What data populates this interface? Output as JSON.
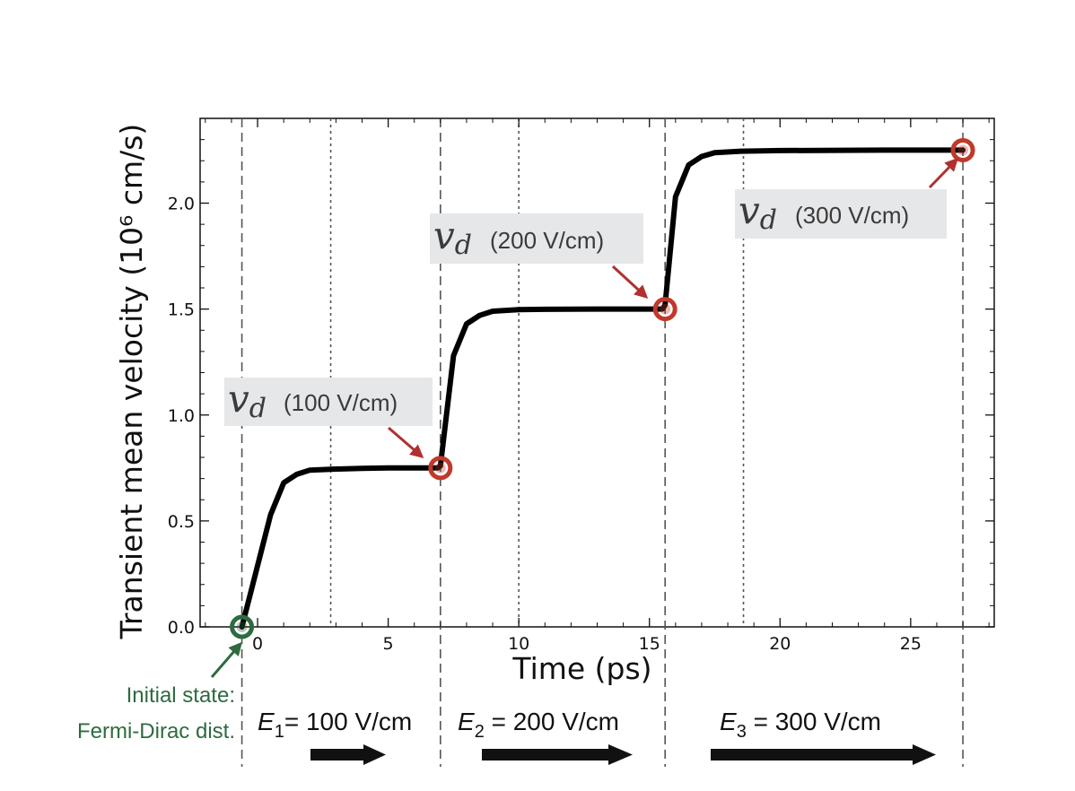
{
  "chart_data": {
    "type": "line",
    "xlabel": "Time (ps)",
    "ylabel": "Transient mean velocity (10⁶ cm/s)",
    "xlim": [
      -2.2,
      28.2
    ],
    "ylim": [
      0,
      2.4
    ],
    "xticks": [
      0,
      5,
      10,
      15,
      20,
      25
    ],
    "yticks": [
      0.0,
      0.5,
      1.0,
      1.5,
      2.0
    ],
    "xtick_labels": [
      "0",
      "5",
      "10",
      "15",
      "20",
      "25"
    ],
    "ytick_labels": [
      "0.0",
      "0.5",
      "1.0",
      "1.5",
      "2.0"
    ],
    "grid": false,
    "series": [
      {
        "x": [
          -0.6,
          0.5,
          1.0,
          1.5,
          2.0,
          3.0,
          4.0,
          5.0,
          6.9,
          7.0,
          7.5,
          8.0,
          8.5,
          9.0,
          10.0,
          11.0,
          13.0,
          15.5,
          15.6,
          16.0,
          16.5,
          17.0,
          17.5,
          18.5,
          20.0,
          24.0,
          27.0
        ],
        "y": [
          0.0,
          0.53,
          0.68,
          0.72,
          0.74,
          0.745,
          0.748,
          0.75,
          0.75,
          0.76,
          1.28,
          1.43,
          1.47,
          1.49,
          1.497,
          1.499,
          1.5,
          1.5,
          1.52,
          2.03,
          2.18,
          2.22,
          2.238,
          2.245,
          2.248,
          2.25,
          2.25
        ]
      }
    ],
    "dashed_lines_x": [
      -0.6,
      7.0,
      15.6,
      27.0
    ],
    "dotted_lines_x": [
      2.8,
      10.0,
      18.6
    ],
    "markers": [
      {
        "x": -0.6,
        "y": 0.0,
        "color": "#2e6b3f"
      },
      {
        "x": 7.0,
        "y": 0.75,
        "color": "#c0392b"
      },
      {
        "x": 15.6,
        "y": 1.5,
        "color": "#c0392b"
      },
      {
        "x": 27.0,
        "y": 2.25,
        "color": "#c0392b"
      }
    ],
    "annotations": [
      {
        "symbol": "𝑣",
        "sub": "d",
        "text": "(100 V/cm)"
      },
      {
        "symbol": "𝑣",
        "sub": "d",
        "text": "(200 V/cm)"
      },
      {
        "symbol": "𝑣",
        "sub": "d",
        "text": "(300 V/cm)"
      }
    ],
    "initial_state": [
      "Initial state:",
      "Fermi-Dirac dist."
    ],
    "fields": [
      {
        "symbol": "E",
        "sub": "1",
        "text": "= 100 V/cm"
      },
      {
        "symbol": "E",
        "sub": "2",
        "text": " = 200 V/cm"
      },
      {
        "symbol": "E",
        "sub": "3",
        "text": " = 300 V/cm"
      }
    ]
  },
  "colors": {
    "line": "#000000",
    "marker_red": "#c0392b",
    "marker_green": "#2e6b3f",
    "annotation_arrow": "#b03030",
    "label_box": "#e6e7e8"
  }
}
